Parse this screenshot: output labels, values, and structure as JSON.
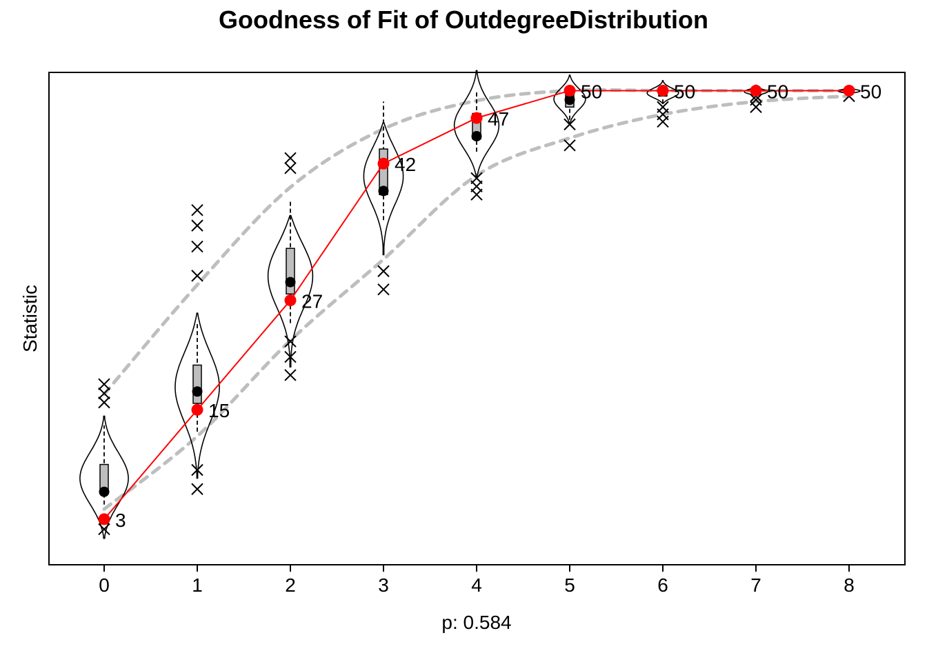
{
  "chart_data": {
    "type": "violin",
    "title": "Goodness of Fit of OutdegreeDistribution",
    "xlabel": "p: 0.584",
    "ylabel": "Statistic",
    "categories": [
      "0",
      "1",
      "2",
      "3",
      "4",
      "5",
      "6",
      "7",
      "8"
    ],
    "ylim": [
      -2,
      52
    ],
    "observed": {
      "values": [
        3,
        15,
        27,
        42,
        47,
        50,
        50,
        50,
        50
      ],
      "labels": [
        "3",
        "15",
        "27",
        "42",
        "47",
        "50",
        "50",
        "50",
        "50"
      ],
      "color": "#ff0000"
    },
    "simulated_mean": [
      6,
      17,
      29,
      39,
      45,
      49,
      50,
      50,
      50
    ],
    "box": [
      {
        "q1": 5.9,
        "q3": 9,
        "min": 4.6,
        "max": 13.3
      },
      {
        "q1": 15.7,
        "q3": 19.9,
        "min": 12.6,
        "max": 24.7
      },
      {
        "q1": 27.7,
        "q3": 32.7,
        "min": 24.5,
        "max": 37.9
      },
      {
        "q1": 38.6,
        "q3": 43.6,
        "min": 35.8,
        "max": 48.8
      },
      {
        "q1": 44.7,
        "q3": 47.5,
        "min": 43.3,
        "max": 50
      },
      {
        "q1": 48.2,
        "q3": 50,
        "min": 46.8,
        "max": 50
      },
      {
        "q1": 49.4,
        "q3": 50,
        "min": 48.6,
        "max": 50
      },
      {
        "q1": 49.7,
        "q3": 50,
        "min": 49.4,
        "max": 50
      },
      {
        "q1": 49.9,
        "q3": 50,
        "min": 49.7,
        "max": 50
      }
    ],
    "violin": [
      {
        "lo": 0.9,
        "hi": 14.3,
        "width": 0.26
      },
      {
        "lo": 7.5,
        "hi": 25.6,
        "width": 0.24
      },
      {
        "lo": 19.7,
        "hi": 36.3,
        "width": 0.25
      },
      {
        "lo": 32,
        "hi": 46.5,
        "width": 0.22
      },
      {
        "lo": 40.5,
        "hi": 52.2,
        "width": 0.24
      },
      {
        "lo": 46.3,
        "hi": 51.7,
        "width": 0.17
      },
      {
        "lo": 48.6,
        "hi": 51.1,
        "width": 0.17
      },
      {
        "lo": 49.4,
        "hi": 50.6,
        "width": 0.13
      },
      {
        "lo": 49.6,
        "hi": 50.4,
        "width": 0.12
      }
    ],
    "outliers": [
      [
        1.9,
        15.8,
        16.8,
        17.8
      ],
      [
        6.3,
        8.4,
        29.7,
        32.9,
        35.2,
        36.9
      ],
      [
        18.8,
        20.8,
        22.5,
        41.5,
        42.6
      ],
      [
        28.2,
        30.2
      ],
      [
        38.6,
        39.5,
        40.4
      ],
      [
        44,
        46.3
      ],
      [
        46.6,
        47.4,
        48.2
      ],
      [
        48.2,
        49,
        49.4
      ],
      [
        49.4
      ]
    ],
    "band_upper": [
      16.7,
      28.7,
      39.4,
      45.8,
      48.9,
      50,
      50,
      50,
      50
    ],
    "band_lower": [
      4.1,
      12.1,
      22.6,
      31.5,
      40.7,
      44.8,
      47.4,
      48.8,
      49.4
    ],
    "colors": {
      "observed": "#ff0000",
      "band": "#bebebe",
      "box_fill": "#bebebe",
      "mean_point": "#000000"
    }
  }
}
